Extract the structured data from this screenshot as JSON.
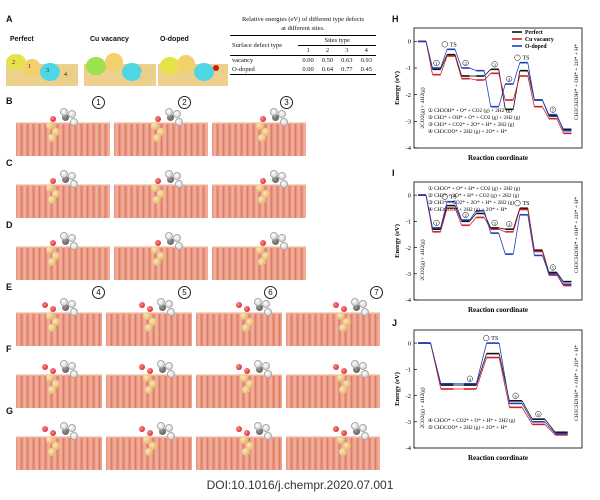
{
  "panel_labels": [
    "A",
    "B",
    "C",
    "D",
    "E",
    "F",
    "G",
    "H",
    "I",
    "J"
  ],
  "panelA": {
    "models": [
      "Perfect",
      "Cu vacancy",
      "O-doped"
    ],
    "site_numbers": [
      "1",
      "2",
      "3",
      "4"
    ]
  },
  "table": {
    "caption_line1": "Relative energies (eV) of different type defects",
    "caption_line2": "at different sites.",
    "col_header": "Surface defect type",
    "sites_header": "Sites type",
    "site_ids": [
      "1",
      "2",
      "3",
      "4"
    ],
    "rows": [
      {
        "label": "vacancy",
        "values": [
          "0.00",
          "0.50",
          "0.63",
          "0.93"
        ]
      },
      {
        "label": "O-doped",
        "values": [
          "0.00",
          "0.64",
          "0.77",
          "0.45"
        ]
      }
    ]
  },
  "step_markers_BD": [
    "1",
    "2",
    "3"
  ],
  "step_markers_E": [
    "4",
    "5",
    "6",
    "7"
  ],
  "doi": "DOI:10.1016/j.chempr.2020.07.001",
  "colors": {
    "perfect": "#111111",
    "cu_vacancy": "#d0202a",
    "o_doped": "#1f3fbf"
  },
  "chart_data": [
    {
      "panel": "H",
      "type": "line",
      "xlabel": "Reaction coordinate",
      "ylabel": "Energy (eV)",
      "ylim": [
        -4,
        0.5
      ],
      "yticks": [
        "0",
        "-1",
        "-2",
        "-3",
        "-4"
      ],
      "legend": [
        "Perfect",
        "Cu vacancy",
        "O-doped"
      ],
      "start_label": "2CO2(g) + 4H2(g)",
      "end_label": "CH3CH2OH* + OH* + 2O* + H*",
      "ts_labels": [
        "TS",
        "TS"
      ],
      "step_labels": [
        "1",
        "2",
        "3",
        "4",
        "5"
      ],
      "notes": [
        "① CH3OH* + O* + CO2 (g) + 2H2 (g)",
        "② CH3* + OH* + O* + CO2 (g) + 2H2 (g)",
        "③ CH3* + CO2* + 2O* + H* + 2H2 (g)",
        "④ CH3COO* + 2H2 (g) + 2O* + H*"
      ],
      "series": [
        {
          "name": "Perfect",
          "values": [
            0,
            -1.05,
            -0.5,
            -1.3,
            -1.3,
            -1.05,
            -2.55,
            -1.1,
            -2.2,
            -2.8,
            -3.3
          ]
        },
        {
          "name": "Cu vacancy",
          "values": [
            0,
            -1.25,
            -0.55,
            -1.4,
            -1.45,
            -1.2,
            -2.2,
            -1.3,
            -2.45,
            -2.9,
            -3.45
          ]
        },
        {
          "name": "O-doped",
          "values": [
            0,
            -1.0,
            -0.3,
            -1.0,
            -1.1,
            -2.45,
            -1.6,
            -0.8,
            -2.2,
            -2.75,
            -3.35
          ]
        }
      ]
    },
    {
      "panel": "I",
      "type": "line",
      "xlabel": "Reaction coordinate",
      "ylabel": "Energy (eV)",
      "ylim": [
        -4,
        0.5
      ],
      "yticks": [
        "0",
        "-1",
        "-2",
        "-3",
        "-4"
      ],
      "start_label": "2CO2(g) + 4H2(g)",
      "end_label": "CH3CH2OH* + OH* + 2O* + H*",
      "ts_labels": [
        "TS",
        "TS"
      ],
      "step_labels": [
        "1",
        "2",
        "3",
        "4",
        "5"
      ],
      "notes": [
        "① CH3O* + O* + H* + CO2 (g) + 2H2 (g)",
        "② CH3* + 2O* + H* + CO2 (g) + 2H2 (g)",
        "③ CH3* + CO2* + 2O* + H* + 2H2 (g)",
        "④ CH3COO* + 2H2 (g) + 2O* + H*"
      ],
      "series": [
        {
          "name": "Perfect",
          "values": [
            0,
            -1.3,
            -0.4,
            -1.0,
            -0.7,
            -1.25,
            -1.3,
            -0.5,
            -2.1,
            -2.95,
            -3.3
          ]
        },
        {
          "name": "Cu vacancy",
          "values": [
            0,
            -1.4,
            -0.5,
            -1.15,
            -0.85,
            -1.3,
            -1.4,
            -0.55,
            -2.15,
            -3.05,
            -3.45
          ]
        },
        {
          "name": "O-doped",
          "values": [
            0,
            -1.25,
            -0.25,
            -0.95,
            -0.6,
            -1.45,
            -2.25,
            -0.75,
            -2.3,
            -3.0,
            -3.4
          ]
        }
      ]
    },
    {
      "panel": "J",
      "type": "line",
      "xlabel": "Reaction coordinate",
      "ylabel": "Energy (eV)",
      "ylim": [
        -4,
        0.5
      ],
      "yticks": [
        "0",
        "-1",
        "-2",
        "-3",
        "-4"
      ],
      "start_label": "2CO2(g) + 4H2(g)",
      "end_label": "CH3CH2OH* + OH* + 2O* + H*",
      "ts_labels": [
        "TS"
      ],
      "step_labels": [
        "4",
        "5",
        "6"
      ],
      "notes": [
        "④ CH3O* + CO2* + O* + H* + 2H2 (g)",
        "⑤ CH3COO* + 2H2 (g) + 2O* + H*"
      ],
      "series": [
        {
          "name": "Perfect",
          "values": [
            0,
            -1.6,
            -1.6,
            -0.4,
            -2.2,
            -2.9,
            -3.4
          ]
        },
        {
          "name": "Cu vacancy",
          "values": [
            0,
            -1.75,
            -1.75,
            -0.55,
            -2.45,
            -3.1,
            -3.5
          ]
        },
        {
          "name": "O-doped",
          "values": [
            0,
            -1.55,
            -1.55,
            0.0,
            -2.3,
            -3.0,
            -3.45
          ]
        }
      ]
    }
  ]
}
